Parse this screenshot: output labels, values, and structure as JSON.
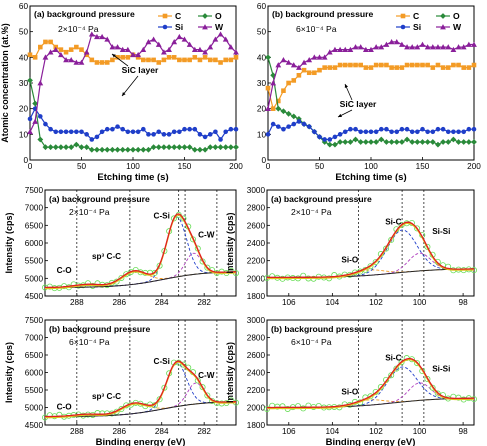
{
  "chart_data": [
    {
      "type": "line",
      "panel": "(a) background pressure",
      "pressure": "2×10⁻⁴ Pa",
      "annotation": "SiC layer",
      "xlabel": "Etching time (s)",
      "ylabel": "Atomic concentration (at.%)",
      "xlim": [
        0,
        200
      ],
      "ylim": [
        0,
        60
      ],
      "xticks": [
        "0",
        "50",
        "100",
        "150",
        "200"
      ],
      "yticks": [
        "0",
        "10",
        "20",
        "30",
        "40",
        "50",
        "60"
      ],
      "legend_position": "top-right",
      "series": [
        {
          "name": "C",
          "color": "#f39b25",
          "marker": "square",
          "x": [
            0,
            5,
            10,
            15,
            20,
            25,
            30,
            35,
            40,
            45,
            50,
            55,
            60,
            65,
            70,
            75,
            80,
            85,
            90,
            95,
            100,
            105,
            110,
            115,
            120,
            125,
            130,
            135,
            140,
            145,
            150,
            155,
            160,
            165,
            170,
            175,
            180,
            185,
            190,
            195,
            200
          ],
          "y": [
            41,
            40,
            44,
            46,
            46,
            44,
            43,
            42,
            43,
            44,
            43,
            41,
            39,
            38,
            38,
            38,
            39,
            40,
            40,
            40,
            41,
            40,
            39,
            39,
            39,
            38,
            39,
            40,
            40,
            39,
            39,
            39,
            40,
            39,
            40,
            39,
            39,
            38,
            39,
            39,
            40
          ]
        },
        {
          "name": "O",
          "color": "#2a8a3a",
          "marker": "diamond",
          "x": [
            0,
            5,
            10,
            15,
            20,
            25,
            30,
            35,
            40,
            45,
            50,
            55,
            60,
            65,
            70,
            75,
            80,
            85,
            90,
            95,
            100,
            105,
            110,
            115,
            120,
            125,
            130,
            135,
            140,
            145,
            150,
            155,
            160,
            165,
            170,
            175,
            180,
            185,
            190,
            195,
            200
          ],
          "y": [
            31,
            22,
            8,
            5,
            5,
            5,
            5,
            5,
            5,
            6,
            5,
            5,
            4,
            4,
            4,
            4,
            4,
            4,
            4,
            4,
            4,
            4,
            4,
            4,
            5,
            5,
            5,
            5,
            5,
            5,
            5,
            5,
            4,
            4,
            4,
            5,
            5,
            5,
            5,
            5,
            5
          ]
        },
        {
          "name": "Si",
          "color": "#1f3ec9",
          "marker": "circle",
          "x": [
            0,
            5,
            10,
            15,
            20,
            25,
            30,
            35,
            40,
            45,
            50,
            55,
            60,
            65,
            70,
            75,
            80,
            85,
            90,
            95,
            100,
            105,
            110,
            115,
            120,
            125,
            130,
            135,
            140,
            145,
            150,
            155,
            160,
            165,
            170,
            175,
            180,
            185,
            190,
            195,
            200
          ],
          "y": [
            16,
            20,
            17,
            14,
            12,
            11,
            11,
            11,
            11,
            11,
            11,
            10,
            8,
            9,
            11,
            12,
            12,
            13,
            12,
            11,
            11,
            11,
            12,
            10,
            10,
            11,
            10,
            10,
            11,
            11,
            12,
            12,
            12,
            10,
            9,
            10,
            11,
            8,
            11,
            12,
            12
          ]
        },
        {
          "name": "W",
          "color": "#8a1f9a",
          "marker": "triangle",
          "x": [
            0,
            5,
            10,
            15,
            20,
            25,
            30,
            35,
            40,
            45,
            50,
            55,
            60,
            65,
            70,
            75,
            80,
            85,
            90,
            95,
            100,
            105,
            110,
            115,
            120,
            125,
            130,
            135,
            140,
            145,
            150,
            155,
            160,
            165,
            170,
            175,
            180,
            185,
            190,
            195,
            200
          ],
          "y": [
            11,
            15,
            30,
            40,
            42,
            43,
            41,
            39,
            39,
            38,
            38,
            42,
            49,
            48,
            48,
            47,
            44,
            44,
            43,
            43,
            41,
            41,
            43,
            46,
            47,
            45,
            42,
            43,
            46,
            48,
            47,
            45,
            43,
            43,
            42,
            44,
            47,
            49,
            47,
            44,
            42
          ]
        }
      ]
    },
    {
      "type": "line",
      "panel": "(b) background pressure",
      "pressure": "6×10⁻⁴ Pa",
      "annotation": "SiC layer",
      "xlabel": "Etching time (s)",
      "ylabel": "",
      "xlim": [
        0,
        200
      ],
      "ylim": [
        0,
        60
      ],
      "xticks": [
        "0",
        "50",
        "100",
        "150",
        "200"
      ],
      "yticks": [
        "0",
        "10",
        "20",
        "30",
        "40",
        "50",
        "60"
      ],
      "legend_position": "top-right",
      "series": [
        {
          "name": "C",
          "color": "#f39b25",
          "marker": "square",
          "x": [
            0,
            5,
            10,
            15,
            20,
            25,
            30,
            35,
            40,
            45,
            50,
            55,
            60,
            65,
            70,
            75,
            80,
            85,
            90,
            95,
            100,
            105,
            110,
            115,
            120,
            125,
            130,
            135,
            140,
            145,
            150,
            155,
            160,
            165,
            170,
            175,
            180,
            185,
            190,
            195,
            200
          ],
          "y": [
            28,
            20,
            23,
            27,
            30,
            31,
            33,
            35,
            34,
            34,
            35,
            36,
            36,
            36,
            37,
            37,
            37,
            37,
            37,
            36,
            36,
            37,
            37,
            37,
            36,
            36,
            36,
            37,
            37,
            37,
            37,
            37,
            36,
            37,
            36,
            36,
            37,
            37,
            36,
            36,
            37
          ]
        },
        {
          "name": "O",
          "color": "#2a8a3a",
          "marker": "diamond",
          "x": [
            0,
            5,
            10,
            15,
            20,
            25,
            30,
            35,
            40,
            45,
            50,
            55,
            60,
            65,
            70,
            75,
            80,
            85,
            90,
            95,
            100,
            105,
            110,
            115,
            120,
            125,
            130,
            135,
            140,
            145,
            150,
            155,
            160,
            165,
            170,
            175,
            180,
            185,
            190,
            195,
            200
          ],
          "y": [
            40,
            33,
            20,
            19,
            18,
            17,
            16,
            14,
            13,
            11,
            9,
            7,
            6,
            6,
            7,
            7,
            7,
            8,
            7,
            7,
            7,
            7,
            8,
            7,
            7,
            7,
            7,
            8,
            7,
            7,
            7,
            7,
            7,
            6,
            7,
            7,
            8,
            7,
            7,
            7,
            7
          ]
        },
        {
          "name": "Si",
          "color": "#1f3ec9",
          "marker": "circle",
          "x": [
            0,
            5,
            10,
            15,
            20,
            25,
            30,
            35,
            40,
            45,
            50,
            55,
            60,
            65,
            70,
            75,
            80,
            85,
            90,
            95,
            100,
            105,
            110,
            115,
            120,
            125,
            130,
            135,
            140,
            145,
            150,
            155,
            160,
            165,
            170,
            175,
            180,
            185,
            190,
            195,
            200
          ],
          "y": [
            10,
            14,
            13,
            12,
            13,
            14,
            15,
            14,
            13,
            11,
            9,
            8,
            8,
            9,
            10,
            11,
            12,
            12,
            11,
            11,
            11,
            11,
            12,
            12,
            11,
            11,
            12,
            12,
            11,
            11,
            12,
            11,
            11,
            12,
            12,
            11,
            11,
            11,
            11,
            12,
            12
          ]
        },
        {
          "name": "W",
          "color": "#8a1f9a",
          "marker": "triangle",
          "x": [
            0,
            5,
            10,
            15,
            20,
            25,
            30,
            35,
            40,
            45,
            50,
            55,
            60,
            65,
            70,
            75,
            80,
            85,
            90,
            95,
            100,
            105,
            110,
            115,
            120,
            125,
            130,
            135,
            140,
            145,
            150,
            155,
            160,
            165,
            170,
            175,
            180,
            185,
            190,
            195,
            200
          ],
          "y": [
            20,
            30,
            37,
            39,
            38,
            37,
            36,
            38,
            39,
            40,
            40,
            40,
            42,
            43,
            43,
            43,
            43,
            44,
            44,
            43,
            43,
            44,
            44,
            45,
            46,
            46,
            45,
            44,
            44,
            44,
            45,
            44,
            44,
            44,
            44,
            44,
            43,
            44,
            44,
            45,
            45
          ]
        }
      ]
    },
    {
      "type": "xps",
      "panel": "(a) background pressure",
      "pressure": "2×10⁻⁴ Pa",
      "xlabel": "",
      "ylabel": "Intensity (cps)",
      "xlim": [
        289.5,
        280.5
      ],
      "ylim": [
        4500,
        7500
      ],
      "xticks": [
        "288",
        "286",
        "284",
        "282"
      ],
      "yticks": [
        "4500",
        "5000",
        "5500",
        "6000",
        "6500",
        "7000",
        "7500"
      ],
      "background": [
        4740,
        5200
      ],
      "raw_noise": 45,
      "vlines": [
        288.0,
        285.5,
        283.2,
        282.9,
        281.4
      ],
      "peaks": [
        {
          "name": "C-O",
          "center": 287.5,
          "height": 80,
          "width": 1.5,
          "color": "#3d7bd9"
        },
        {
          "name": "sp³ C-C",
          "center": 285.3,
          "height": 380,
          "width": 1.4,
          "color": "#f39b25"
        },
        {
          "name": "C-Si",
          "center": 283.3,
          "height": 1700,
          "width": 1.1,
          "color": "#1f3ec9"
        },
        {
          "name": "C-W",
          "center": 282.5,
          "height": 600,
          "width": 0.9,
          "color": "#b040c0"
        }
      ],
      "labels": [
        {
          "text": "C-O",
          "x": 288.6,
          "y": 5150
        },
        {
          "text": "sp³ C-C",
          "x": 286.6,
          "y": 5550
        },
        {
          "text": "C-Si",
          "x": 284.0,
          "y": 6700
        },
        {
          "text": "C-W",
          "x": 281.9,
          "y": 6150
        }
      ]
    },
    {
      "type": "xps",
      "panel": "(a) background pressure",
      "pressure": "2×10⁻⁴ Pa",
      "xlabel": "",
      "ylabel": "Intensity (cps)",
      "xlim": [
        107,
        97.5
      ],
      "ylim": [
        1800,
        3000
      ],
      "xticks": [
        "106",
        "104",
        "102",
        "100",
        "98"
      ],
      "yticks": [
        "1800",
        "2000",
        "2200",
        "2400",
        "2600",
        "2800",
        "3000"
      ],
      "background": [
        2010,
        2110
      ],
      "raw_noise": 20,
      "vlines": [
        102.8,
        100.8,
        99.8
      ],
      "peaks": [
        {
          "name": "Si-O",
          "center": 102.3,
          "height": 60,
          "width": 1.6,
          "color": "#f39b25"
        },
        {
          "name": "Si-C",
          "center": 100.8,
          "height": 480,
          "width": 1.6,
          "color": "#1f3ec9"
        },
        {
          "name": "Si-Si",
          "center": 100.0,
          "height": 200,
          "width": 1.2,
          "color": "#b040c0"
        }
      ],
      "labels": [
        {
          "text": "Si-O",
          "x": 103.2,
          "y": 2180
        },
        {
          "text": "Si-C",
          "x": 101.2,
          "y": 2610
        },
        {
          "text": "Si-Si",
          "x": 99.0,
          "y": 2500
        }
      ]
    },
    {
      "type": "xps",
      "panel": "(b) background pressure",
      "pressure": "6×10⁻⁴ Pa",
      "xlabel": "Binding energy (eV)",
      "ylabel": "Intensity (cps)",
      "xlim": [
        289.5,
        280.5
      ],
      "ylim": [
        4500,
        7500
      ],
      "xticks": [
        "288",
        "286",
        "284",
        "282"
      ],
      "yticks": [
        "4500",
        "5000",
        "5500",
        "6000",
        "6500",
        "7000",
        "7500"
      ],
      "background": [
        4740,
        5180
      ],
      "raw_noise": 45,
      "vlines": [
        288.0,
        285.5,
        283.2,
        282.9,
        281.4
      ],
      "peaks": [
        {
          "name": "C-O",
          "center": 287.5,
          "height": 60,
          "width": 1.5,
          "color": "#3d7bd9"
        },
        {
          "name": "sp³ C-C",
          "center": 285.3,
          "height": 300,
          "width": 1.4,
          "color": "#f39b25"
        },
        {
          "name": "C-Si",
          "center": 283.3,
          "height": 1250,
          "width": 1.1,
          "color": "#1f3ec9"
        },
        {
          "name": "C-W",
          "center": 282.4,
          "height": 600,
          "width": 0.9,
          "color": "#b040c0"
        }
      ],
      "labels": [
        {
          "text": "C-O",
          "x": 288.6,
          "y": 4950
        },
        {
          "text": "sp³ C-C",
          "x": 286.6,
          "y": 5250
        },
        {
          "text": "C-Si",
          "x": 284.0,
          "y": 6250
        },
        {
          "text": "C-W",
          "x": 281.9,
          "y": 5850
        }
      ]
    },
    {
      "type": "xps",
      "panel": "(b) background pressure",
      "pressure": "6×10⁻⁴ Pa",
      "xlabel": "Binding energy (eV)",
      "ylabel": "Intensity (cps)",
      "xlim": [
        107,
        97.5
      ],
      "ylim": [
        1800,
        3000
      ],
      "xticks": [
        "106",
        "104",
        "102",
        "100",
        "98"
      ],
      "yticks": [
        "1800",
        "2000",
        "2200",
        "2400",
        "2600",
        "2800",
        "3000"
      ],
      "background": [
        2000,
        2110
      ],
      "raw_noise": 20,
      "vlines": [
        102.8,
        100.8,
        99.8
      ],
      "peaks": [
        {
          "name": "Si-O",
          "center": 102.3,
          "height": 60,
          "width": 1.6,
          "color": "#f39b25"
        },
        {
          "name": "Si-C",
          "center": 100.8,
          "height": 400,
          "width": 1.6,
          "color": "#1f3ec9"
        },
        {
          "name": "Si-Si",
          "center": 100.0,
          "height": 200,
          "width": 1.2,
          "color": "#b040c0"
        }
      ],
      "labels": [
        {
          "text": "Si-O",
          "x": 103.2,
          "y": 2150
        },
        {
          "text": "Si-C",
          "x": 101.2,
          "y": 2540
        },
        {
          "text": "Si-Si",
          "x": 99.0,
          "y": 2410
        }
      ]
    }
  ],
  "colors": {
    "raw": "#66dd55",
    "envelope": "#e02020",
    "fit": "#e0c020",
    "background": "#222222"
  }
}
